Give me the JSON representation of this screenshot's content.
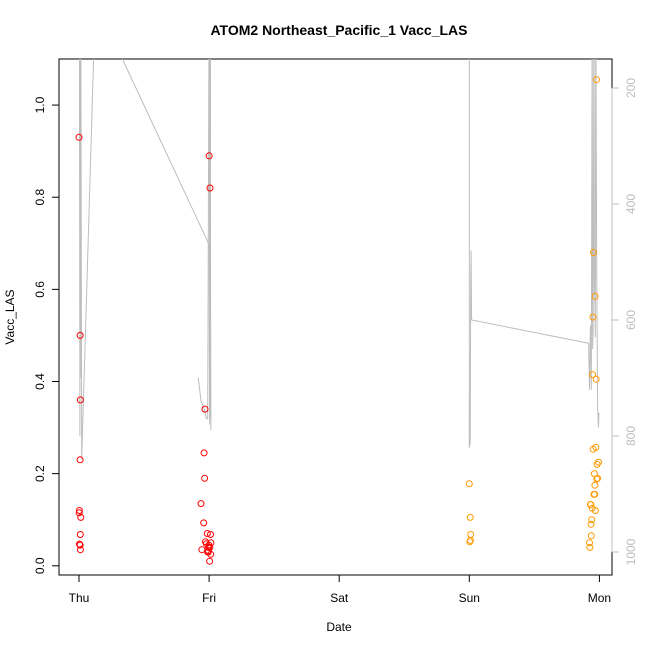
{
  "chart_data": {
    "type": "scatter",
    "title": "ATOM2 Northeast_Pacific_1 Vacc_LAS",
    "xlabel": "Date",
    "ylabel": "Vacc_LAS",
    "x_ticks": [
      "Thu",
      "Fri",
      "Sat",
      "Sun",
      "Mon"
    ],
    "xlim": [
      "Thu 00:00",
      "Mon 00:20"
    ],
    "ylim": [
      -0.02,
      1.1
    ],
    "y_ticks": [
      "0.0",
      "0.2",
      "0.4",
      "0.6",
      "0.8",
      "1.0"
    ],
    "y2_ticks": [
      "200",
      "400",
      "600",
      "800",
      "1000"
    ],
    "y2_reversed": true,
    "grid": false,
    "colors": {
      "series_red": "#ff0000",
      "series_orange": "#ff9900",
      "trace": "#bdbdbd",
      "axis": "#000000",
      "right_axis": "#bdbdbd"
    },
    "series": [
      {
        "color": "#ff0000",
        "marker": "open-circle",
        "points": [
          [
            "Thu 00:00",
            0.93
          ],
          [
            "Thu 00:12",
            0.5
          ],
          [
            "Thu 00:12",
            0.23
          ],
          [
            "Thu 00:16",
            0.36
          ],
          [
            "Thu 00:04",
            0.12
          ],
          [
            "Thu 00:02",
            0.115
          ],
          [
            "Thu 00:20",
            0.105
          ],
          [
            "Thu 00:14",
            0.068
          ],
          [
            "Thu 00:06",
            0.047
          ],
          [
            "Thu 00:12",
            0.045
          ],
          [
            "Thu 00:15",
            0.035
          ],
          [
            "Thu 22:30",
            0.135
          ],
          [
            "Thu 23:00",
            0.093
          ],
          [
            "Thu 22:40",
            0.035
          ],
          [
            "Thu 23:05",
            0.245
          ],
          [
            "Thu 23:10",
            0.19
          ],
          [
            "Thu 23:15",
            0.34
          ],
          [
            "Thu 23:20",
            0.052
          ],
          [
            "Thu 23:30",
            0.048
          ],
          [
            "Thu 23:40",
            0.07
          ],
          [
            "Thu 23:45",
            0.03
          ],
          [
            "Thu 23:50",
            0.03
          ],
          [
            "Thu 23:52",
            0.033
          ],
          [
            "Thu 23:55",
            0.04
          ],
          [
            "Thu 23:58",
            0.045
          ],
          [
            "Fri 00:05",
            0.01
          ],
          [
            "Fri 00:08",
            0.04
          ],
          [
            "Fri 00:15",
            0.068
          ],
          [
            "Fri 00:20",
            0.05
          ],
          [
            "Fri 00:18",
            0.025
          ],
          [
            "Fri 00:00",
            0.89
          ],
          [
            "Fri 00:10",
            0.82
          ]
        ]
      },
      {
        "color": "#ff9900",
        "marker": "open-circle",
        "points": [
          [
            "Sun 00:00",
            0.178
          ],
          [
            "Sun 00:10",
            0.105
          ],
          [
            "Sun 00:15",
            0.068
          ],
          [
            "Sun 00:05",
            0.052
          ],
          [
            "Sun 00:12",
            0.055
          ],
          [
            "Sun 22:10",
            0.05
          ],
          [
            "Sun 22:15",
            0.04
          ],
          [
            "Sun 22:20",
            0.133
          ],
          [
            "Sun 22:25",
            0.133
          ],
          [
            "Sun 22:28",
            0.09
          ],
          [
            "Sun 22:30",
            0.065
          ],
          [
            "Sun 22:35",
            0.1
          ],
          [
            "Sun 22:40",
            0.125
          ],
          [
            "Sun 22:45",
            0.415
          ],
          [
            "Sun 22:48",
            0.54
          ],
          [
            "Sun 22:50",
            0.253
          ],
          [
            "Sun 22:55",
            0.68
          ],
          [
            "Sun 23:00",
            0.155
          ],
          [
            "Sun 23:05",
            0.2
          ],
          [
            "Sun 23:08",
            0.155
          ],
          [
            "Sun 23:10",
            0.175
          ],
          [
            "Sun 23:12",
            0.585
          ],
          [
            "Sun 23:15",
            0.12
          ],
          [
            "Sun 23:20",
            0.257
          ],
          [
            "Sun 23:25",
            0.405
          ],
          [
            "Sun 23:28",
            1.055
          ],
          [
            "Sun 23:30",
            0.188
          ],
          [
            "Sun 23:35",
            0.22
          ],
          [
            "Sun 23:40",
            0.19
          ],
          [
            "Sun 23:50",
            0.225
          ]
        ]
      }
    ],
    "trace_right_axis": {
      "color": "#bdbdbd",
      "axis": "right",
      "reversed": true,
      "points": [
        [
          "Thu 00:02",
          50
        ],
        [
          "Thu 00:04",
          50
        ],
        [
          "Thu 00:10",
          800
        ],
        [
          "Thu 00:14",
          50
        ],
        [
          "Thu 00:16",
          700
        ],
        [
          "Thu 00:18",
          50
        ],
        [
          "Thu 00:20",
          50
        ],
        [
          "Thu 00:30",
          840
        ],
        [
          "Thu 03:00",
          50
        ],
        [
          "Fri 00:00",
          470
        ],
        [
          "Fri 00:05",
          780
        ],
        [
          "Fri 00:08",
          50
        ],
        [
          "Fri 00:12",
          50
        ],
        [
          "Fri 00:16",
          470
        ],
        [
          "Fri 00:20",
          790
        ]
      ],
      "second_part": [
        [
          "Thu 22:00",
          700
        ],
        [
          "Thu 22:30",
          740
        ],
        [
          "Thu 23:00",
          750
        ],
        [
          "Thu 23:30",
          770
        ],
        [
          "Thu 23:45",
          770
        ],
        [
          "Fri 00:00",
          50
        ],
        [
          "Fri 00:10",
          770
        ],
        [
          "Fri 00:15",
          50
        ]
      ],
      "third_part": [
        [
          "Sun 00:00",
          50
        ],
        [
          "Sun 00:00",
          820
        ],
        [
          "Sun 00:10",
          810
        ],
        [
          "Sun 00:15",
          540
        ],
        [
          "Sun 00:20",
          480
        ],
        [
          "Sun 00:25",
          600
        ],
        [
          "Sun 22:00",
          640
        ],
        [
          "Sun 22:10",
          720
        ],
        [
          "Sun 22:20",
          610
        ],
        [
          "Sun 22:30",
          720
        ],
        [
          "Sun 22:40",
          50
        ],
        [
          "Sun 22:45",
          650
        ],
        [
          "Sun 22:50",
          620
        ],
        [
          "Sun 23:00",
          50
        ],
        [
          "Sun 23:05",
          540
        ],
        [
          "Sun 23:10",
          570
        ],
        [
          "Sun 23:15",
          630
        ],
        [
          "Sun 23:20",
          50
        ],
        [
          "Sun 23:30",
          510
        ],
        [
          "Sun 23:40",
          750
        ],
        [
          "Sun 23:50",
          785
        ],
        [
          "Sun 23:55",
          760
        ]
      ]
    }
  }
}
